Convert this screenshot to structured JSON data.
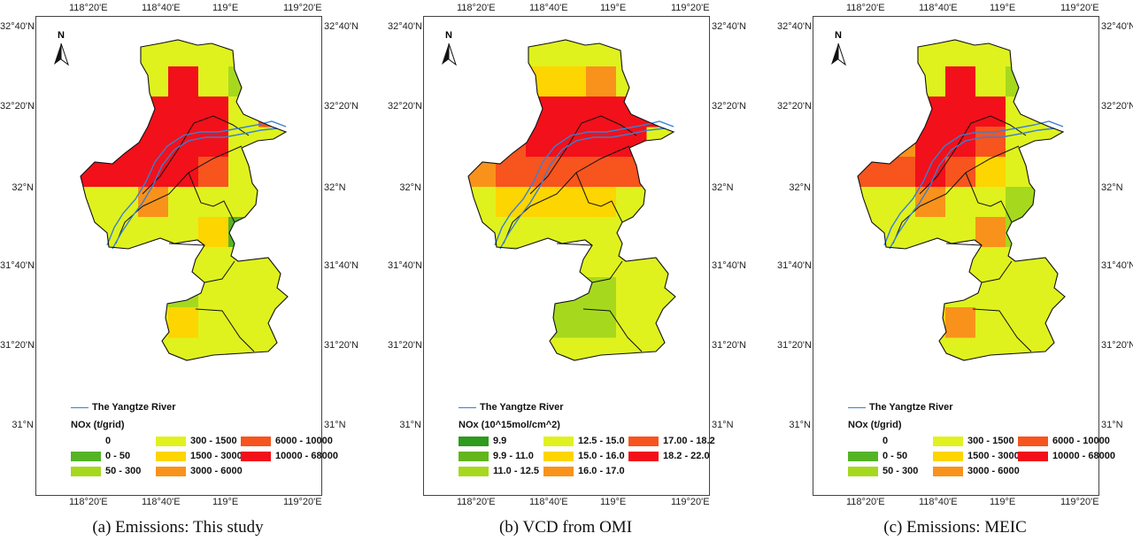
{
  "ticks": {
    "lon": [
      "118°20'E",
      "118°40'E",
      "119°E",
      "119°20'E"
    ],
    "lat": [
      "32°40'N",
      "32°20'N",
      "32°N",
      "31°40'N",
      "31°20'N",
      "31°N"
    ]
  },
  "north_label": "N",
  "river_label": "The Yangtze River",
  "colors": {
    "boundary": "#111111",
    "river": "#3a7fd5",
    "c0": "#ffffff",
    "c1": "#55b426",
    "c2": "#a6d91e",
    "c3": "#dff21e",
    "c4": "#fdd500",
    "c5": "#f9921a",
    "c6": "#f7541e",
    "c7": "#f2101a"
  },
  "panels": [
    {
      "caption": "(a) Emissions: This study",
      "legend_title": "NOx (t/grid)",
      "legend_items": [
        {
          "label": "0",
          "color": "#ffffff"
        },
        {
          "label": "0 - 50",
          "color": "#55b426"
        },
        {
          "label": "50 - 300",
          "color": "#a6d91e"
        },
        {
          "label": "300 - 1500",
          "color": "#dff21e"
        },
        {
          "label": "1500 - 3000",
          "color": "#fdd500"
        },
        {
          "label": "3000 - 6000",
          "color": "#f9921a"
        },
        {
          "label": "6000 - 10000",
          "color": "#f7541e"
        },
        {
          "label": "10000 - 68000",
          "color": "#f2101a"
        }
      ]
    },
    {
      "caption": "(b) VCD from OMI",
      "legend_title": "NOx (10^15mol/cm^2)",
      "legend_items": [
        {
          "label": "9.9",
          "color": "#2e9a1e"
        },
        {
          "label": "9.9 - 11.0",
          "color": "#62b61c"
        },
        {
          "label": "11.0 - 12.5",
          "color": "#a6d91e"
        },
        {
          "label": "12.5 - 15.0",
          "color": "#dff21e"
        },
        {
          "label": "15.0 - 16.0",
          "color": "#fdd500"
        },
        {
          "label": "16.0 - 17.0",
          "color": "#f9921a"
        },
        {
          "label": "17.00 - 18.2",
          "color": "#f7541e"
        },
        {
          "label": "18.2 - 22.0",
          "color": "#f2101a"
        }
      ]
    },
    {
      "caption": "(c) Emissions: MEIC",
      "legend_title": "NOx (t/grid)",
      "legend_items": [
        {
          "label": "0",
          "color": "#ffffff"
        },
        {
          "label": "0 - 50",
          "color": "#55b426"
        },
        {
          "label": "50 - 300",
          "color": "#a6d91e"
        },
        {
          "label": "300 - 1500",
          "color": "#dff21e"
        },
        {
          "label": "1500 - 3000",
          "color": "#fdd500"
        },
        {
          "label": "3000 - 6000",
          "color": "#f9921a"
        },
        {
          "label": "6000 - 10000",
          "color": "#f7541e"
        },
        {
          "label": "10000 - 68000",
          "color": "#f2101a"
        }
      ]
    }
  ]
}
